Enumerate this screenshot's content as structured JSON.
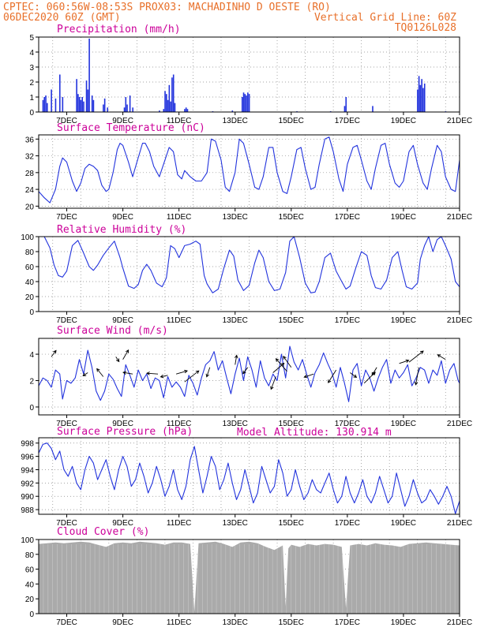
{
  "header": {
    "line1_left": "CPTEC:  060:56W-08:53S  PROX03: MACHADINHO D OESTE (RO)",
    "line2_left": "06DEC2020 60Z (GMT)",
    "line2_right": "Vertical Grid Line: 60Z",
    "line3_right": "TQ0126L028",
    "model_altitude": "Model Altitude: 130.914 m"
  },
  "colors": {
    "header": "#e8702a",
    "title": "#cc0099",
    "line": "#2233dd",
    "bar": "#2233dd",
    "cloud": "#aaaaaa"
  },
  "x_axis": {
    "range_days": [
      6.0,
      21.0
    ],
    "ticks": [
      {
        "d": 7,
        "label": "7DEC"
      },
      {
        "d": 9,
        "label": "9DEC"
      },
      {
        "d": 11,
        "label": "11DEC"
      },
      {
        "d": 13,
        "label": "13DEC"
      },
      {
        "d": 15,
        "label": "15DEC"
      },
      {
        "d": 17,
        "label": "17DEC"
      },
      {
        "d": 19,
        "label": "19DEC"
      },
      {
        "d": 21,
        "label": "21DEC"
      }
    ]
  },
  "chart_data": [
    {
      "type": "bar",
      "title": "Precipitation (mm/h)",
      "ylim": [
        0,
        5
      ],
      "yticks": [
        0,
        1,
        2,
        3,
        4,
        5
      ],
      "x_unit": "day of December 2020",
      "points": [
        [
          6.15,
          0.8
        ],
        [
          6.2,
          1.0
        ],
        [
          6.25,
          1.1
        ],
        [
          6.3,
          0.6
        ],
        [
          6.45,
          1.5
        ],
        [
          6.6,
          0.9
        ],
        [
          6.75,
          2.5
        ],
        [
          6.85,
          1.0
        ],
        [
          7.35,
          2.2
        ],
        [
          7.4,
          1.2
        ],
        [
          7.45,
          1.0
        ],
        [
          7.5,
          0.8
        ],
        [
          7.55,
          1.0
        ],
        [
          7.6,
          0.7
        ],
        [
          7.7,
          2.1
        ],
        [
          7.75,
          1.5
        ],
        [
          7.8,
          4.9
        ],
        [
          7.9,
          1.1
        ],
        [
          7.95,
          0.8
        ],
        [
          8.3,
          0.5
        ],
        [
          8.35,
          0.9
        ],
        [
          8.45,
          0.3
        ],
        [
          9.05,
          0.3
        ],
        [
          9.1,
          1.0
        ],
        [
          9.15,
          0.5
        ],
        [
          9.25,
          1.1
        ],
        [
          9.35,
          0.3
        ],
        [
          10.3,
          0.1
        ],
        [
          10.45,
          0.2
        ],
        [
          10.5,
          1.4
        ],
        [
          10.55,
          1.2
        ],
        [
          10.6,
          0.8
        ],
        [
          10.65,
          1.8
        ],
        [
          10.7,
          0.7
        ],
        [
          10.75,
          2.3
        ],
        [
          10.8,
          2.5
        ],
        [
          10.85,
          0.6
        ],
        [
          11.2,
          0.2
        ],
        [
          11.25,
          0.3
        ],
        [
          11.3,
          0.2
        ],
        [
          12.2,
          0.05
        ],
        [
          12.9,
          0.1
        ],
        [
          13.25,
          1.0
        ],
        [
          13.3,
          1.3
        ],
        [
          13.35,
          1.2
        ],
        [
          13.4,
          1.1
        ],
        [
          13.45,
          1.3
        ],
        [
          13.5,
          1.2
        ],
        [
          15.2,
          0.05
        ],
        [
          16.4,
          0.05
        ],
        [
          16.9,
          0.4
        ],
        [
          16.95,
          1.0
        ],
        [
          17.9,
          0.4
        ],
        [
          19.5,
          1.5
        ],
        [
          19.55,
          2.4
        ],
        [
          19.6,
          1.8
        ],
        [
          19.65,
          2.2
        ],
        [
          19.7,
          1.6
        ],
        [
          19.75,
          1.9
        ],
        [
          20.5,
          0.05
        ]
      ]
    },
    {
      "type": "line",
      "title": "Surface Temperature (nC)",
      "ylim": [
        19.5,
        37
      ],
      "yticks": [
        20,
        24,
        28,
        32,
        36
      ],
      "x": [
        6.0,
        6.2,
        6.4,
        6.6,
        6.75,
        6.85,
        7.0,
        7.2,
        7.35,
        7.5,
        7.65,
        7.8,
        7.95,
        8.1,
        8.25,
        8.4,
        8.5,
        8.65,
        8.8,
        8.9,
        9.0,
        9.2,
        9.35,
        9.5,
        9.7,
        9.8,
        9.95,
        10.1,
        10.3,
        10.5,
        10.65,
        10.8,
        10.95,
        11.1,
        11.2,
        11.4,
        11.6,
        11.8,
        12.0,
        12.15,
        12.3,
        12.5,
        12.65,
        12.8,
        13.0,
        13.15,
        13.3,
        13.5,
        13.7,
        13.85,
        14.0,
        14.2,
        14.35,
        14.5,
        14.7,
        14.85,
        15.0,
        15.2,
        15.35,
        15.5,
        15.7,
        15.85,
        16.0,
        16.2,
        16.35,
        16.5,
        16.7,
        16.85,
        17.0,
        17.2,
        17.35,
        17.5,
        17.7,
        17.85,
        18.0,
        18.2,
        18.35,
        18.5,
        18.7,
        18.85,
        19.0,
        19.2,
        19.35,
        19.5,
        19.7,
        19.85,
        20.0,
        20.2,
        20.35,
        20.5,
        20.7,
        20.85,
        21.0
      ],
      "y": [
        23.5,
        22.0,
        20.8,
        24.0,
        29.5,
        31.5,
        30.5,
        26.0,
        23.5,
        25.5,
        29.0,
        30.0,
        29.5,
        28.5,
        25.0,
        23.5,
        24.0,
        28.0,
        33.5,
        35.0,
        34.5,
        30.5,
        27.0,
        30.5,
        35.0,
        35.0,
        33.0,
        29.5,
        27.0,
        31.0,
        34.0,
        33.0,
        27.5,
        26.5,
        28.5,
        27.0,
        26.0,
        26.0,
        28.0,
        36.0,
        35.5,
        31.0,
        24.5,
        23.5,
        28.0,
        36.0,
        35.0,
        30.0,
        24.5,
        24.0,
        27.0,
        34.0,
        34.0,
        28.0,
        23.5,
        23.0,
        27.0,
        33.5,
        34.0,
        29.0,
        24.0,
        24.5,
        30.0,
        36.0,
        36.5,
        33.0,
        26.5,
        23.5,
        30.0,
        34.0,
        34.5,
        31.0,
        26.0,
        24.0,
        29.0,
        34.5,
        35.0,
        30.0,
        25.5,
        24.5,
        26.0,
        33.0,
        34.5,
        30.0,
        25.5,
        24.0,
        29.0,
        34.5,
        33.0,
        27.0,
        24.0,
        23.5,
        31.0
      ]
    },
    {
      "type": "line",
      "title": "Relative Humidity (%)",
      "ylim": [
        0,
        100
      ],
      "yticks": [
        0,
        20,
        40,
        60,
        80,
        100
      ],
      "x": [
        6.0,
        6.2,
        6.4,
        6.55,
        6.7,
        6.85,
        7.0,
        7.2,
        7.4,
        7.6,
        7.8,
        7.95,
        8.1,
        8.3,
        8.5,
        8.7,
        8.9,
        9.0,
        9.2,
        9.4,
        9.55,
        9.7,
        9.85,
        10.0,
        10.2,
        10.4,
        10.55,
        10.7,
        10.85,
        11.0,
        11.2,
        11.4,
        11.6,
        11.75,
        11.9,
        12.0,
        12.2,
        12.4,
        12.6,
        12.8,
        12.95,
        13.1,
        13.3,
        13.5,
        13.7,
        13.85,
        14.0,
        14.2,
        14.4,
        14.6,
        14.8,
        14.95,
        15.1,
        15.3,
        15.5,
        15.7,
        15.85,
        16.0,
        16.2,
        16.4,
        16.6,
        16.8,
        16.95,
        17.1,
        17.3,
        17.5,
        17.7,
        17.85,
        18.0,
        18.2,
        18.4,
        18.6,
        18.8,
        18.95,
        19.1,
        19.3,
        19.5,
        19.6,
        19.75,
        19.9,
        20.05,
        20.2,
        20.35,
        20.5,
        20.7,
        20.85,
        21.0
      ],
      "y": [
        100,
        100,
        85,
        62,
        48,
        46,
        54,
        88,
        95,
        78,
        60,
        55,
        62,
        75,
        85,
        94,
        72,
        58,
        34,
        31,
        36,
        55,
        63,
        55,
        38,
        33,
        45,
        88,
        84,
        72,
        88,
        90,
        94,
        90,
        48,
        37,
        25,
        30,
        58,
        82,
        74,
        42,
        28,
        35,
        65,
        82,
        72,
        40,
        28,
        30,
        52,
        94,
        100,
        72,
        38,
        25,
        26,
        40,
        72,
        78,
        54,
        40,
        30,
        34,
        58,
        80,
        75,
        48,
        32,
        30,
        42,
        72,
        80,
        55,
        33,
        30,
        38,
        70,
        88,
        100,
        80,
        96,
        100,
        88,
        70,
        40,
        33
      ]
    },
    {
      "type": "line",
      "title": "Surface Wind (m/s)",
      "ylim": [
        -0.6,
        5.2
      ],
      "yticks": [
        0,
        2,
        4
      ],
      "x": [
        6.0,
        6.15,
        6.3,
        6.45,
        6.6,
        6.75,
        6.85,
        7.0,
        7.15,
        7.3,
        7.45,
        7.6,
        7.75,
        7.9,
        8.05,
        8.2,
        8.35,
        8.5,
        8.65,
        8.8,
        8.95,
        9.1,
        9.25,
        9.4,
        9.55,
        9.7,
        9.85,
        10.0,
        10.15,
        10.3,
        10.45,
        10.6,
        10.75,
        10.9,
        11.05,
        11.2,
        11.35,
        11.5,
        11.65,
        11.8,
        11.95,
        12.1,
        12.25,
        12.4,
        12.55,
        12.7,
        12.85,
        13.0,
        13.15,
        13.3,
        13.45,
        13.6,
        13.75,
        13.9,
        14.05,
        14.2,
        14.35,
        14.5,
        14.65,
        14.8,
        14.95,
        15.1,
        15.25,
        15.4,
        15.55,
        15.7,
        15.85,
        16.0,
        16.15,
        16.3,
        16.45,
        16.6,
        16.75,
        16.9,
        17.05,
        17.2,
        17.35,
        17.5,
        17.65,
        17.8,
        17.95,
        18.1,
        18.25,
        18.4,
        18.55,
        18.7,
        18.85,
        19.0,
        19.15,
        19.3,
        19.45,
        19.6,
        19.75,
        19.9,
        20.05,
        20.2,
        20.35,
        20.5,
        20.65,
        20.8,
        20.95,
        21.0
      ],
      "y": [
        1.6,
        2.2,
        2.0,
        1.5,
        2.8,
        2.5,
        0.6,
        2.0,
        1.8,
        2.2,
        3.6,
        2.5,
        4.3,
        3.0,
        1.2,
        0.5,
        1.2,
        2.5,
        2.1,
        1.4,
        0.8,
        3.2,
        2.4,
        1.5,
        2.8,
        2.0,
        2.5,
        1.4,
        2.2,
        2.0,
        0.7,
        2.3,
        1.5,
        1.9,
        1.5,
        0.8,
        2.4,
        1.8,
        0.9,
        2.2,
        3.2,
        3.5,
        4.2,
        2.8,
        3.5,
        2.2,
        1.0,
        2.5,
        3.7,
        2.0,
        3.8,
        2.8,
        1.5,
        3.5,
        2.2,
        1.6,
        2.5,
        2.0,
        4.0,
        2.2,
        4.6,
        3.4,
        2.8,
        3.6,
        2.5,
        1.5,
        2.6,
        3.2,
        4.1,
        3.3,
        2.6,
        1.5,
        3.0,
        1.8,
        0.4,
        2.8,
        3.3,
        1.6,
        2.8,
        2.2,
        1.2,
        2.2,
        3.0,
        3.6,
        1.8,
        2.8,
        2.2,
        2.6,
        3.2,
        1.6,
        2.2,
        3.0,
        2.8,
        1.8,
        2.8,
        2.4,
        3.5,
        1.8,
        2.8,
        3.3,
        2.0,
        1.8
      ]
    },
    {
      "type": "line",
      "title": "Surface Pressure (hPa)",
      "ylim": [
        987.3,
        998.8
      ],
      "yticks": [
        988,
        990,
        992,
        994,
        996,
        998
      ],
      "x": [
        6.0,
        6.15,
        6.3,
        6.45,
        6.6,
        6.75,
        6.9,
        7.05,
        7.2,
        7.35,
        7.5,
        7.65,
        7.8,
        7.95,
        8.1,
        8.25,
        8.4,
        8.55,
        8.7,
        8.85,
        9.0,
        9.15,
        9.3,
        9.45,
        9.6,
        9.75,
        9.9,
        10.05,
        10.2,
        10.35,
        10.5,
        10.65,
        10.8,
        10.95,
        11.1,
        11.25,
        11.4,
        11.55,
        11.7,
        11.85,
        12.0,
        12.15,
        12.3,
        12.45,
        12.6,
        12.75,
        12.9,
        13.05,
        13.2,
        13.35,
        13.5,
        13.65,
        13.8,
        13.95,
        14.1,
        14.25,
        14.4,
        14.55,
        14.7,
        14.85,
        15.0,
        15.15,
        15.3,
        15.45,
        15.6,
        15.75,
        15.9,
        16.05,
        16.2,
        16.35,
        16.5,
        16.65,
        16.8,
        16.95,
        17.1,
        17.25,
        17.4,
        17.55,
        17.7,
        17.85,
        18.0,
        18.15,
        18.3,
        18.45,
        18.6,
        18.75,
        18.9,
        19.05,
        19.2,
        19.35,
        19.5,
        19.65,
        19.8,
        19.95,
        20.1,
        20.25,
        20.4,
        20.55,
        20.7,
        20.85,
        21.0
      ],
      "y": [
        996.5,
        997.8,
        998.0,
        997.2,
        995.5,
        996.8,
        994.0,
        993.0,
        994.5,
        992.0,
        991.0,
        994.0,
        996.0,
        995.0,
        992.5,
        994.0,
        995.5,
        993.0,
        991.0,
        994.0,
        996.0,
        994.5,
        991.5,
        992.5,
        995.0,
        993.0,
        990.5,
        992.0,
        994.5,
        992.5,
        990.0,
        991.5,
        994.0,
        991.0,
        989.5,
        991.5,
        995.5,
        997.5,
        994.0,
        990.5,
        993.0,
        996.0,
        994.5,
        991.0,
        992.5,
        995.0,
        992.0,
        989.5,
        991.0,
        994.0,
        991.5,
        989.0,
        990.5,
        994.5,
        992.5,
        990.5,
        991.5,
        995.5,
        993.5,
        990.0,
        991.0,
        994.0,
        991.5,
        989.5,
        990.5,
        992.5,
        991.0,
        990.5,
        992.0,
        993.5,
        991.0,
        989.0,
        990.0,
        993.0,
        990.5,
        989.0,
        990.5,
        992.5,
        990.0,
        989.0,
        990.5,
        993.0,
        991.0,
        989.0,
        990.0,
        993.5,
        991.0,
        988.5,
        990.0,
        992.5,
        990.5,
        989.0,
        989.5,
        991.0,
        990.0,
        988.8,
        990.0,
        991.5,
        990.0,
        987.4,
        989.3
      ]
    },
    {
      "type": "area",
      "title": "Cloud Cover (%)",
      "ylim": [
        0,
        100
      ],
      "yticks": [
        0,
        20,
        40,
        60,
        80,
        100
      ],
      "x": [
        6.0,
        6.3,
        6.6,
        6.9,
        7.2,
        7.5,
        7.8,
        8.1,
        8.4,
        8.7,
        9.0,
        9.3,
        9.6,
        9.9,
        10.2,
        10.5,
        10.8,
        11.1,
        11.4,
        11.55,
        11.7,
        12.0,
        12.3,
        12.6,
        12.9,
        13.2,
        13.5,
        13.8,
        14.1,
        14.4,
        14.7,
        14.8,
        14.9,
        15.0,
        15.3,
        15.6,
        15.9,
        16.2,
        16.5,
        16.8,
        16.95,
        17.1,
        17.4,
        17.7,
        18.0,
        18.3,
        18.6,
        18.9,
        19.2,
        19.5,
        19.8,
        20.1,
        20.4,
        20.7,
        21.0
      ],
      "y": [
        94,
        95,
        96,
        95,
        96,
        97,
        96,
        93,
        90,
        95,
        96,
        95,
        97,
        96,
        95,
        93,
        96,
        96,
        94,
        3,
        95,
        96,
        97,
        94,
        90,
        96,
        97,
        95,
        90,
        86,
        92,
        10,
        88,
        93,
        90,
        94,
        92,
        94,
        93,
        90,
        8,
        92,
        94,
        92,
        95,
        93,
        92,
        90,
        94,
        95,
        96,
        95,
        94,
        93,
        92
      ],
      "dips": [
        [
          11.55,
          3
        ],
        [
          14.8,
          10
        ],
        [
          16.95,
          8
        ]
      ]
    }
  ],
  "wind_vectors": [
    {
      "d": 6.45,
      "s": 3.8,
      "dx": 6,
      "dy": -8
    },
    {
      "d": 7.75,
      "s": 2.6,
      "dx": -6,
      "dy": 4
    },
    {
      "d": 8.3,
      "s": 2.3,
      "dx": -8,
      "dy": -10
    },
    {
      "d": 8.75,
      "s": 3.8,
      "dx": 4,
      "dy": 6
    },
    {
      "d": 9.0,
      "s": 3.6,
      "dx": 7,
      "dy": -12
    },
    {
      "d": 9.35,
      "s": 2.5,
      "dx": -12,
      "dy": -2
    },
    {
      "d": 10.25,
      "s": 2.5,
      "dx": -14,
      "dy": -1
    },
    {
      "d": 10.6,
      "s": 2.4,
      "dx": -9,
      "dy": 2
    },
    {
      "d": 10.9,
      "s": 2.5,
      "dx": 14,
      "dy": -4
    },
    {
      "d": 11.2,
      "s": 1.9,
      "dx": 18,
      "dy": -14
    },
    {
      "d": 12.1,
      "s": 3.0,
      "dx": -4,
      "dy": 12
    },
    {
      "d": 13.0,
      "s": 3.2,
      "dx": 2,
      "dy": -12
    },
    {
      "d": 13.45,
      "s": 3.0,
      "dx": -6,
      "dy": 8
    },
    {
      "d": 14.35,
      "s": 2.6,
      "dx": 14,
      "dy": -12
    },
    {
      "d": 14.45,
      "s": 2.3,
      "dx": -6,
      "dy": 16
    },
    {
      "d": 14.85,
      "s": 2.7,
      "dx": -14,
      "dy": -16
    },
    {
      "d": 15.0,
      "s": 3.0,
      "dx": -10,
      "dy": -14
    },
    {
      "d": 15.8,
      "s": 2.5,
      "dx": -12,
      "dy": 4
    },
    {
      "d": 16.6,
      "s": 2.8,
      "dx": -10,
      "dy": 16
    },
    {
      "d": 17.1,
      "s": 2.6,
      "dx": 8,
      "dy": 6
    },
    {
      "d": 17.6,
      "s": 1.8,
      "dx": 14,
      "dy": -14
    },
    {
      "d": 18.05,
      "s": 3.0,
      "dx": -6,
      "dy": 10
    },
    {
      "d": 18.85,
      "s": 3.3,
      "dx": 12,
      "dy": -4
    },
    {
      "d": 19.2,
      "s": 3.4,
      "dx": 18,
      "dy": -14
    },
    {
      "d": 19.55,
      "s": 3.0,
      "dx": -4,
      "dy": 22
    },
    {
      "d": 20.5,
      "s": 3.6,
      "dx": -10,
      "dy": -6
    }
  ]
}
